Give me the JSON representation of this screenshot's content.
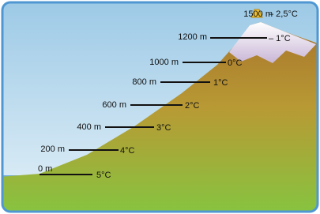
{
  "levels": [
    {
      "altitude": "1500 m",
      "temperature": "– 2,5°C"
    },
    {
      "altitude": "1200 m",
      "temperature": "– 1°C"
    },
    {
      "altitude": "1000 m",
      "temperature": "0°C"
    },
    {
      "altitude": "800 m",
      "temperature": "1°C"
    },
    {
      "altitude": "600 m",
      "temperature": "2°C"
    },
    {
      "altitude": "400 m",
      "temperature": "3°C"
    },
    {
      "altitude": "200 m",
      "temperature": "4°C"
    },
    {
      "altitude": "0 m",
      "temperature": "5°C"
    }
  ]
}
